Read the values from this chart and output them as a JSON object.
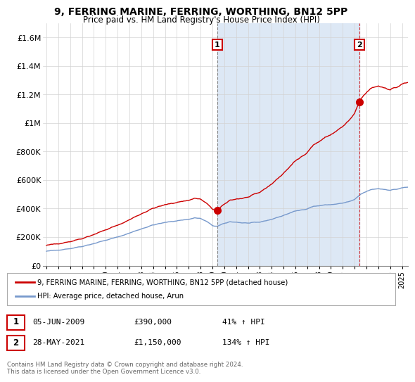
{
  "title": "9, FERRING MARINE, FERRING, WORTHING, BN12 5PP",
  "subtitle": "Price paid vs. HM Land Registry's House Price Index (HPI)",
  "legend_line1": "9, FERRING MARINE, FERRING, WORTHING, BN12 5PP (detached house)",
  "legend_line2": "HPI: Average price, detached house, Arun",
  "annotation1_label": "1",
  "annotation1_date": "05-JUN-2009",
  "annotation1_price": "£390,000",
  "annotation1_hpi": "41% ↑ HPI",
  "annotation2_label": "2",
  "annotation2_date": "28-MAY-2021",
  "annotation2_price": "£1,150,000",
  "annotation2_hpi": "134% ↑ HPI",
  "footer": "Contains HM Land Registry data © Crown copyright and database right 2024.\nThis data is licensed under the Open Government Licence v3.0.",
  "red_color": "#cc0000",
  "blue_color": "#7799cc",
  "shade_color": "#dde8f5",
  "ylim": [
    0,
    1700000
  ],
  "yticks": [
    0,
    200000,
    400000,
    600000,
    800000,
    1000000,
    1200000,
    1400000,
    1600000
  ],
  "ytick_labels": [
    "£0",
    "£200K",
    "£400K",
    "£600K",
    "£800K",
    "£1M",
    "£1.2M",
    "£1.4M",
    "£1.6M"
  ],
  "point1_x": 2009.42,
  "point1_y": 390000,
  "point2_x": 2021.4,
  "point2_y": 1150000,
  "xmin": 1995.0,
  "xmax": 2025.5,
  "xticks": [
    1995,
    1996,
    1997,
    1998,
    1999,
    2000,
    2001,
    2002,
    2003,
    2004,
    2005,
    2006,
    2007,
    2008,
    2009,
    2010,
    2011,
    2012,
    2013,
    2014,
    2015,
    2016,
    2017,
    2018,
    2019,
    2020,
    2021,
    2022,
    2023,
    2024,
    2025
  ]
}
